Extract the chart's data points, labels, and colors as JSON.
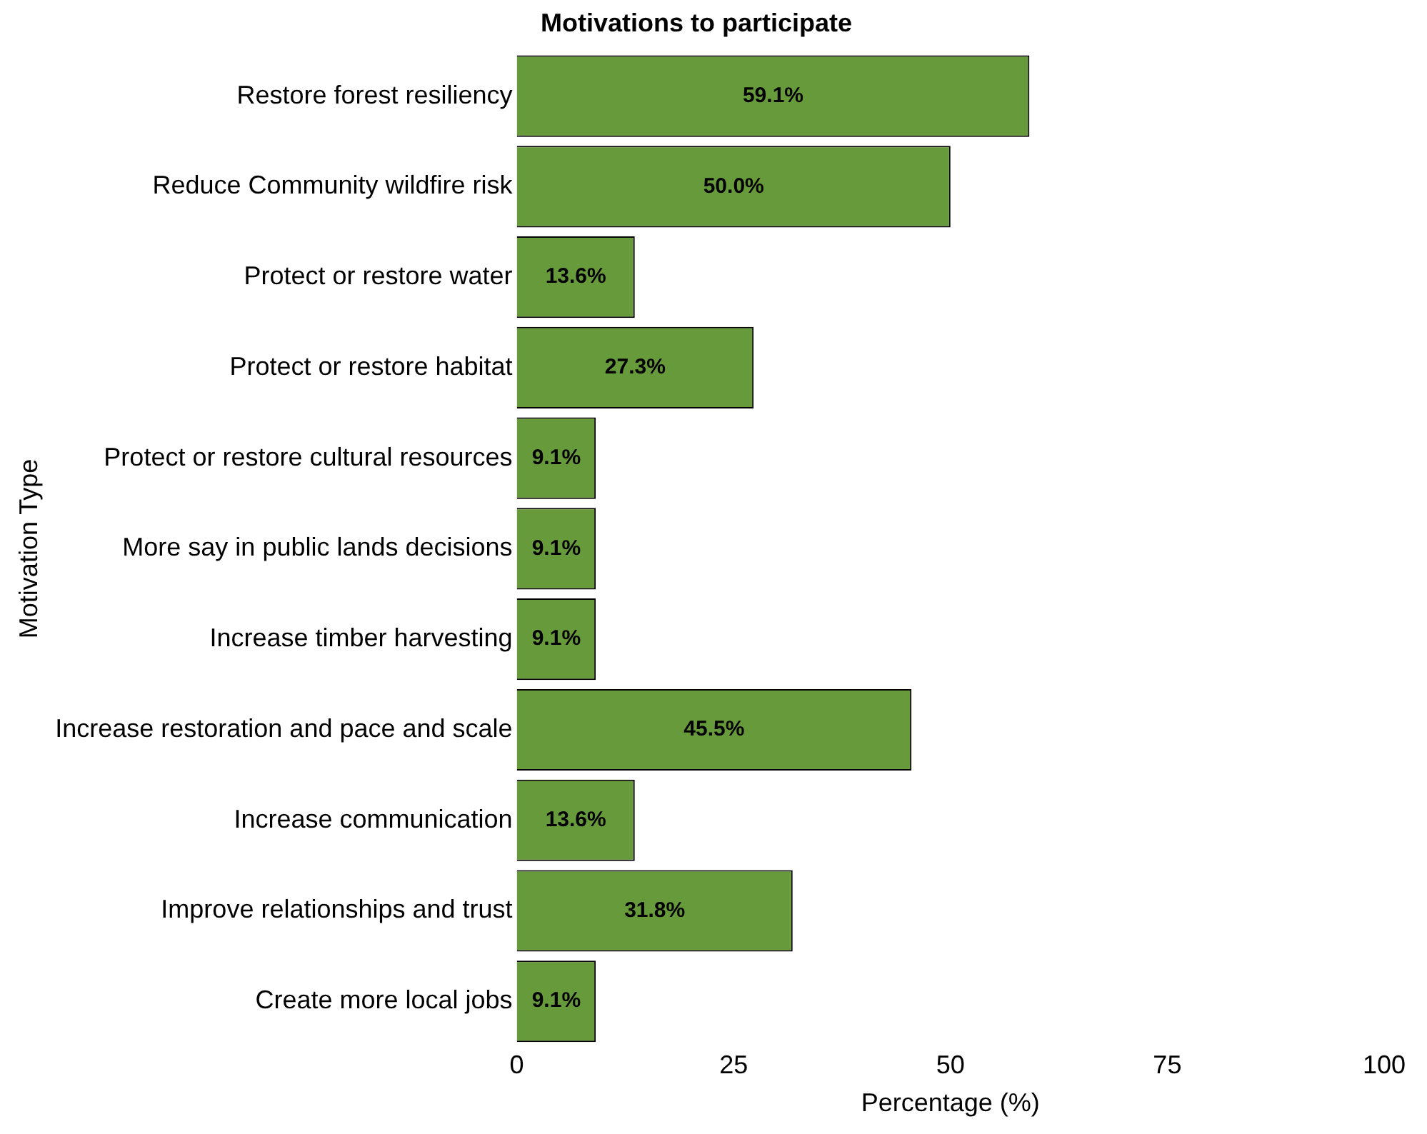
{
  "chart_data": {
    "type": "bar",
    "orientation": "horizontal",
    "title": "Motivations to participate",
    "xlabel": "Percentage (%)",
    "ylabel": "Motivation Type",
    "categories": [
      "Restore forest resiliency",
      "Reduce Community wildfire risk",
      "Protect or restore water",
      "Protect or restore habitat",
      "Protect or restore cultural resources",
      "More say in public lands decisions",
      "Increase timber harvesting",
      "Increase restoration and pace and scale",
      "Increase communication",
      "Improve relationships and trust",
      "Create more local jobs"
    ],
    "values": [
      59.1,
      50.0,
      13.6,
      27.3,
      9.1,
      9.1,
      9.1,
      45.5,
      13.6,
      31.8,
      9.1
    ],
    "value_labels": [
      "59.1%",
      "50.0%",
      "13.6%",
      "27.3%",
      "9.1%",
      "9.1%",
      "9.1%",
      "45.5%",
      "13.6%",
      "31.8%",
      "9.1%"
    ],
    "color": "#679a3a",
    "xlim": [
      0,
      100
    ],
    "xticks": [
      0,
      25,
      50,
      75,
      100
    ],
    "grid": false,
    "legend": false
  }
}
